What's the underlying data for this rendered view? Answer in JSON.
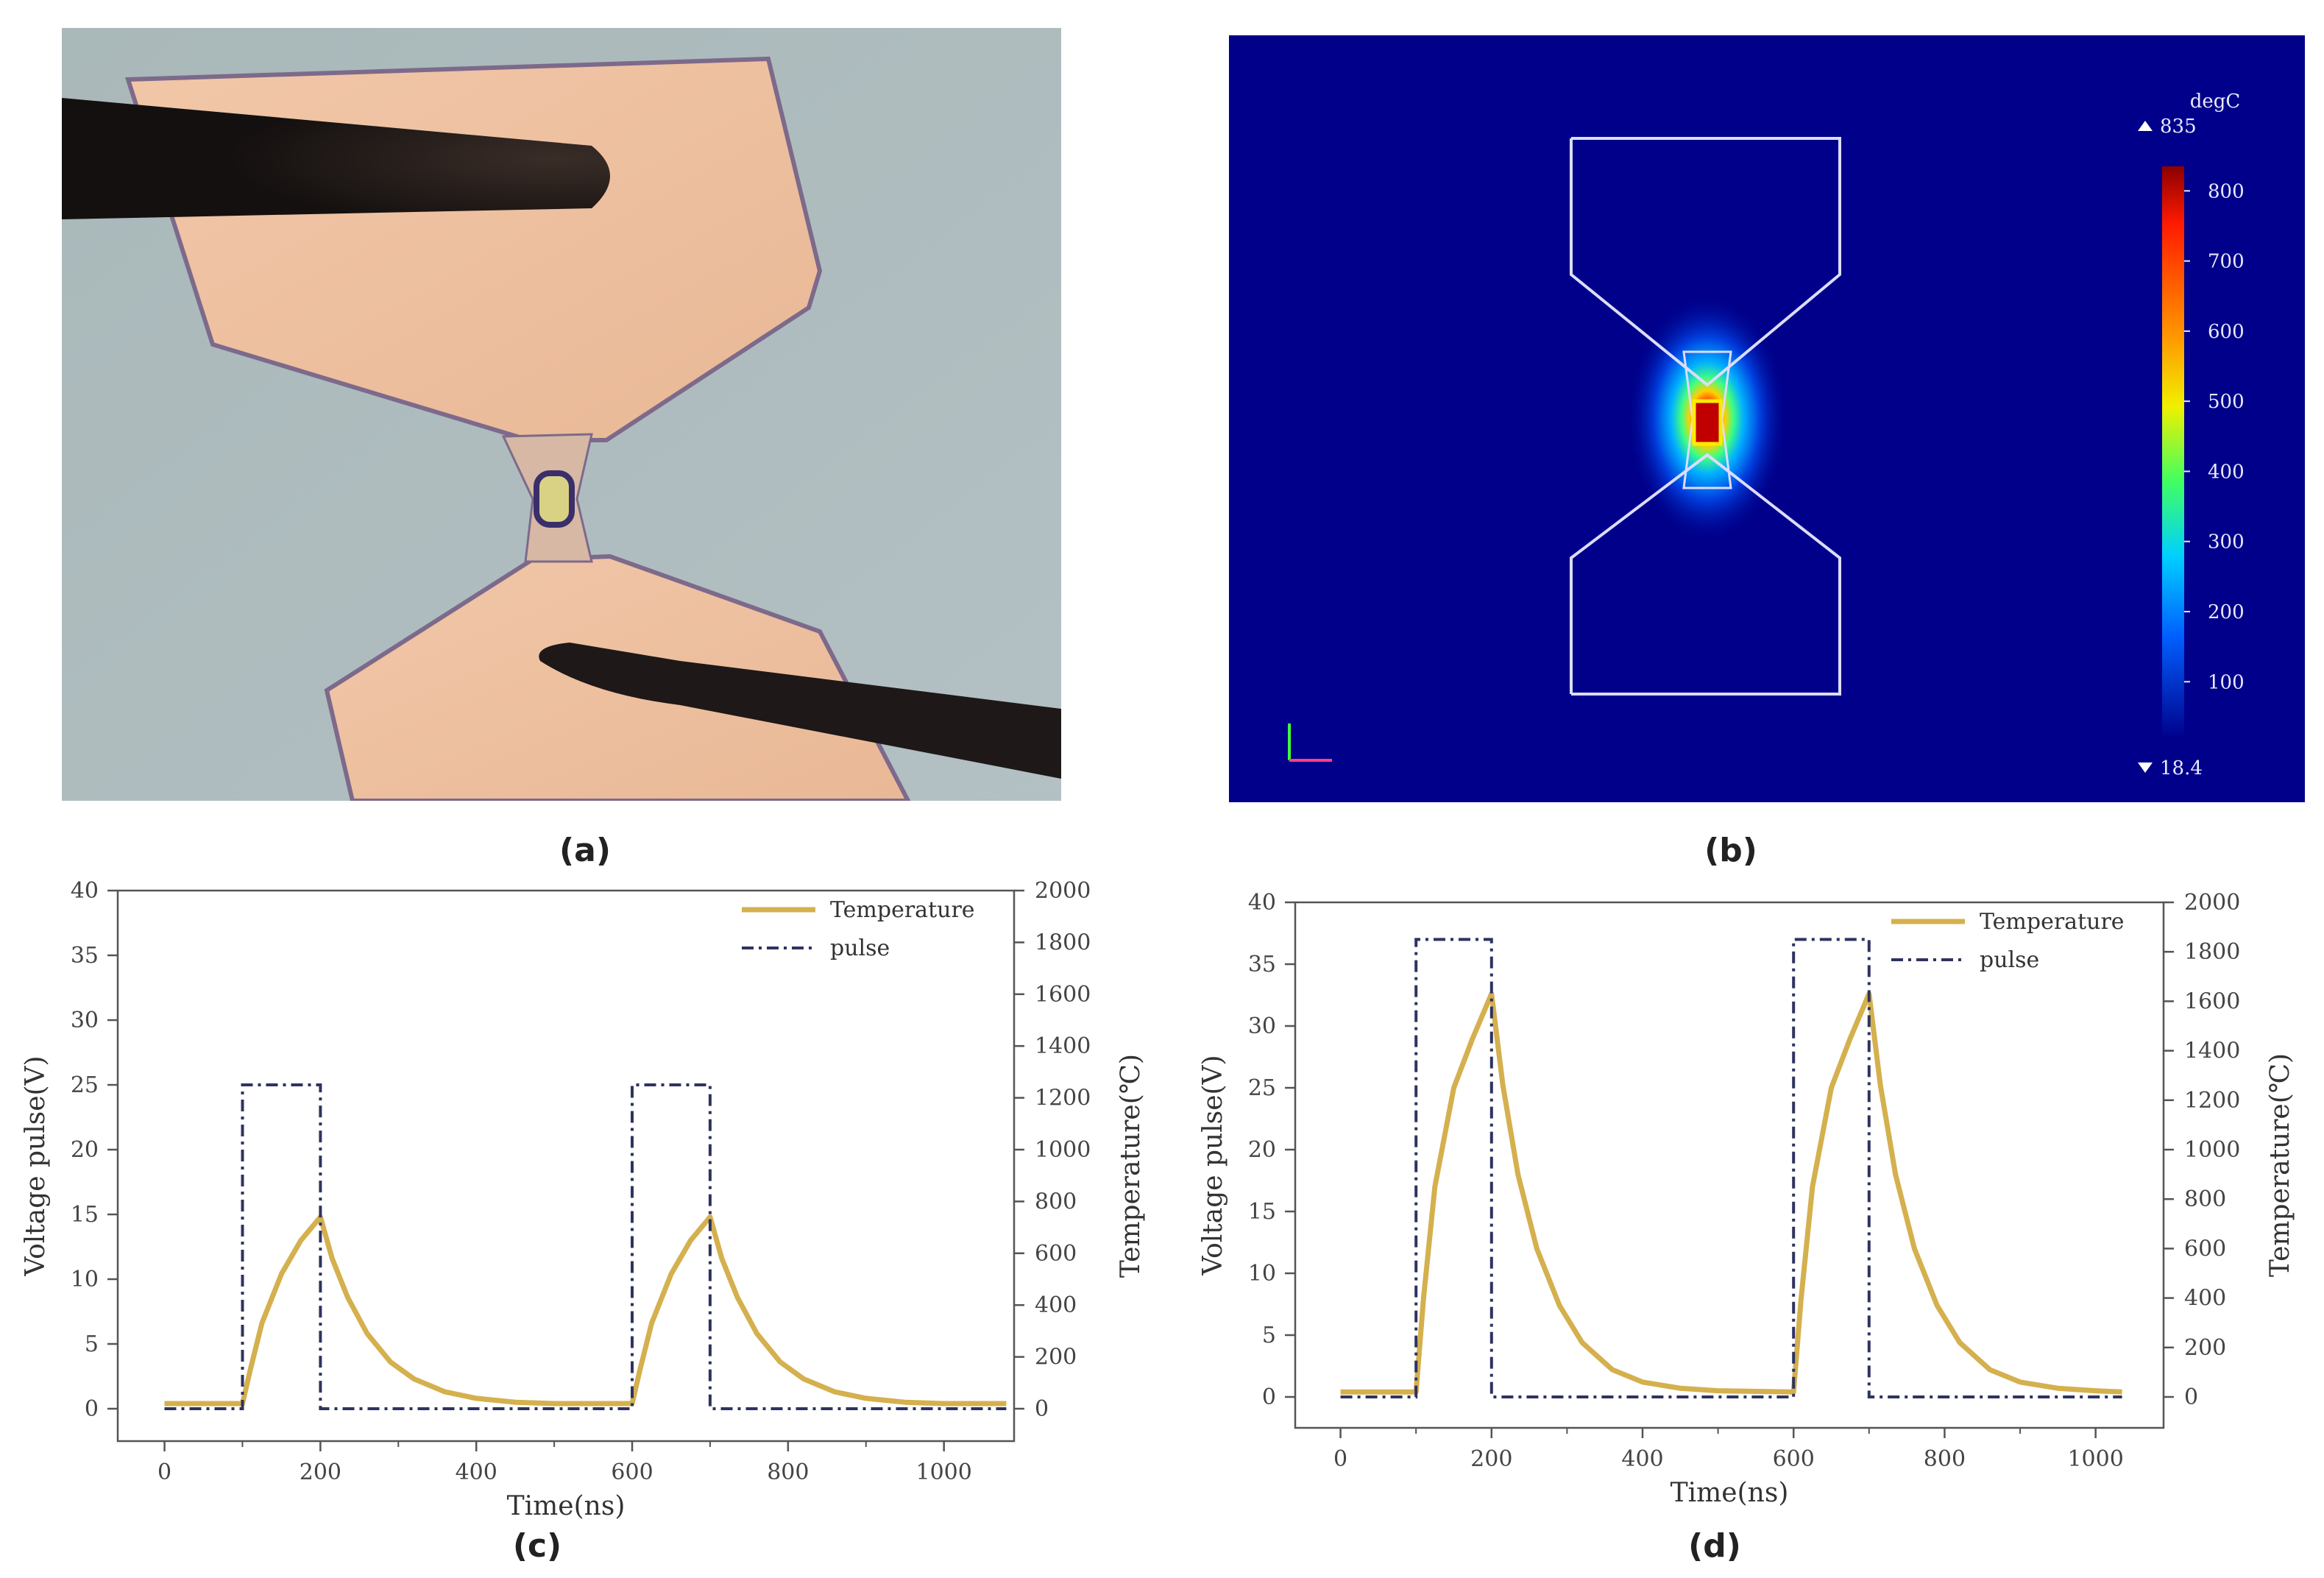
{
  "figure": {
    "labels": {
      "a": "(a)",
      "b": "(b)",
      "c": "(c)",
      "d": "(d)"
    }
  },
  "panel_b": {
    "colorbar_unit": "degC",
    "max_label": "835",
    "min_label": "18.4",
    "ticks": [
      "800",
      "700",
      "600",
      "500",
      "400",
      "300",
      "200",
      "100"
    ],
    "background_color": "#00008a"
  },
  "colors": {
    "temperature": "#d4b04e",
    "pulse": "#2e3360"
  },
  "chart_data": [
    {
      "id": "c",
      "type": "line",
      "xlabel": "Time(ns)",
      "ylabel": "Voltage pulse(V)",
      "y2label": "Temperature(℃)",
      "xlim": [
        -60,
        1090
      ],
      "ylim": [
        -2.5,
        40
      ],
      "y2lim": [
        -125,
        2000
      ],
      "xticks": [
        "0",
        "200",
        "400",
        "600",
        "800",
        "1000"
      ],
      "yticks": [
        "0",
        "5",
        "10",
        "15",
        "20",
        "25",
        "30",
        "35",
        "40"
      ],
      "y2ticks": [
        "0",
        "200",
        "400",
        "600",
        "800",
        "1000",
        "1200",
        "1400",
        "1600",
        "1800",
        "2000"
      ],
      "legend": "top-right",
      "series": [
        {
          "name": "Temperature",
          "axis": "right",
          "x": [
            0,
            100,
            110,
            125,
            150,
            175,
            200,
            215,
            235,
            260,
            290,
            320,
            360,
            400,
            450,
            500,
            600,
            610,
            625,
            650,
            675,
            700,
            715,
            735,
            760,
            790,
            820,
            860,
            900,
            950,
            1000,
            1080
          ],
          "y": [
            20,
            20,
            150,
            330,
            520,
            650,
            740,
            580,
            430,
            290,
            180,
            115,
            65,
            40,
            25,
            20,
            20,
            150,
            330,
            520,
            650,
            740,
            580,
            430,
            290,
            180,
            115,
            65,
            40,
            25,
            20,
            20
          ]
        },
        {
          "name": "pulse",
          "axis": "left",
          "x": [
            0,
            100,
            100,
            200,
            200,
            600,
            600,
            700,
            700,
            1080
          ],
          "y": [
            0,
            0,
            25,
            25,
            0,
            0,
            25,
            25,
            0,
            0
          ]
        }
      ]
    },
    {
      "id": "d",
      "type": "line",
      "xlabel": "Time(ns)",
      "ylabel": "Voltage pulse(V)",
      "y2label": "Temperature(℃)",
      "xlim": [
        -60,
        1090
      ],
      "ylim": [
        -2.5,
        40
      ],
      "y2lim": [
        -125,
        2000
      ],
      "xticks": [
        "0",
        "200",
        "400",
        "600",
        "800",
        "1000"
      ],
      "yticks": [
        "0",
        "5",
        "10",
        "15",
        "20",
        "25",
        "30",
        "35",
        "40"
      ],
      "y2ticks": [
        "0",
        "200",
        "400",
        "600",
        "800",
        "1000",
        "1200",
        "1400",
        "1600",
        "1800",
        "2000"
      ],
      "legend": "top-right",
      "series": [
        {
          "name": "Temperature",
          "axis": "right",
          "x": [
            0,
            100,
            110,
            125,
            150,
            175,
            200,
            215,
            235,
            260,
            290,
            320,
            360,
            400,
            450,
            500,
            600,
            610,
            625,
            650,
            675,
            700,
            715,
            735,
            760,
            790,
            820,
            860,
            900,
            950,
            1000,
            1035
          ],
          "y": [
            20,
            20,
            400,
            850,
            1250,
            1450,
            1630,
            1260,
            900,
            600,
            370,
            220,
            110,
            60,
            35,
            25,
            20,
            400,
            850,
            1250,
            1450,
            1630,
            1260,
            900,
            600,
            370,
            220,
            110,
            60,
            35,
            25,
            20
          ]
        },
        {
          "name": "pulse",
          "axis": "left",
          "x": [
            0,
            100,
            100,
            200,
            200,
            600,
            600,
            700,
            700,
            1035
          ],
          "y": [
            0,
            0,
            37,
            37,
            0,
            0,
            37,
            37,
            0,
            0
          ]
        }
      ]
    }
  ]
}
